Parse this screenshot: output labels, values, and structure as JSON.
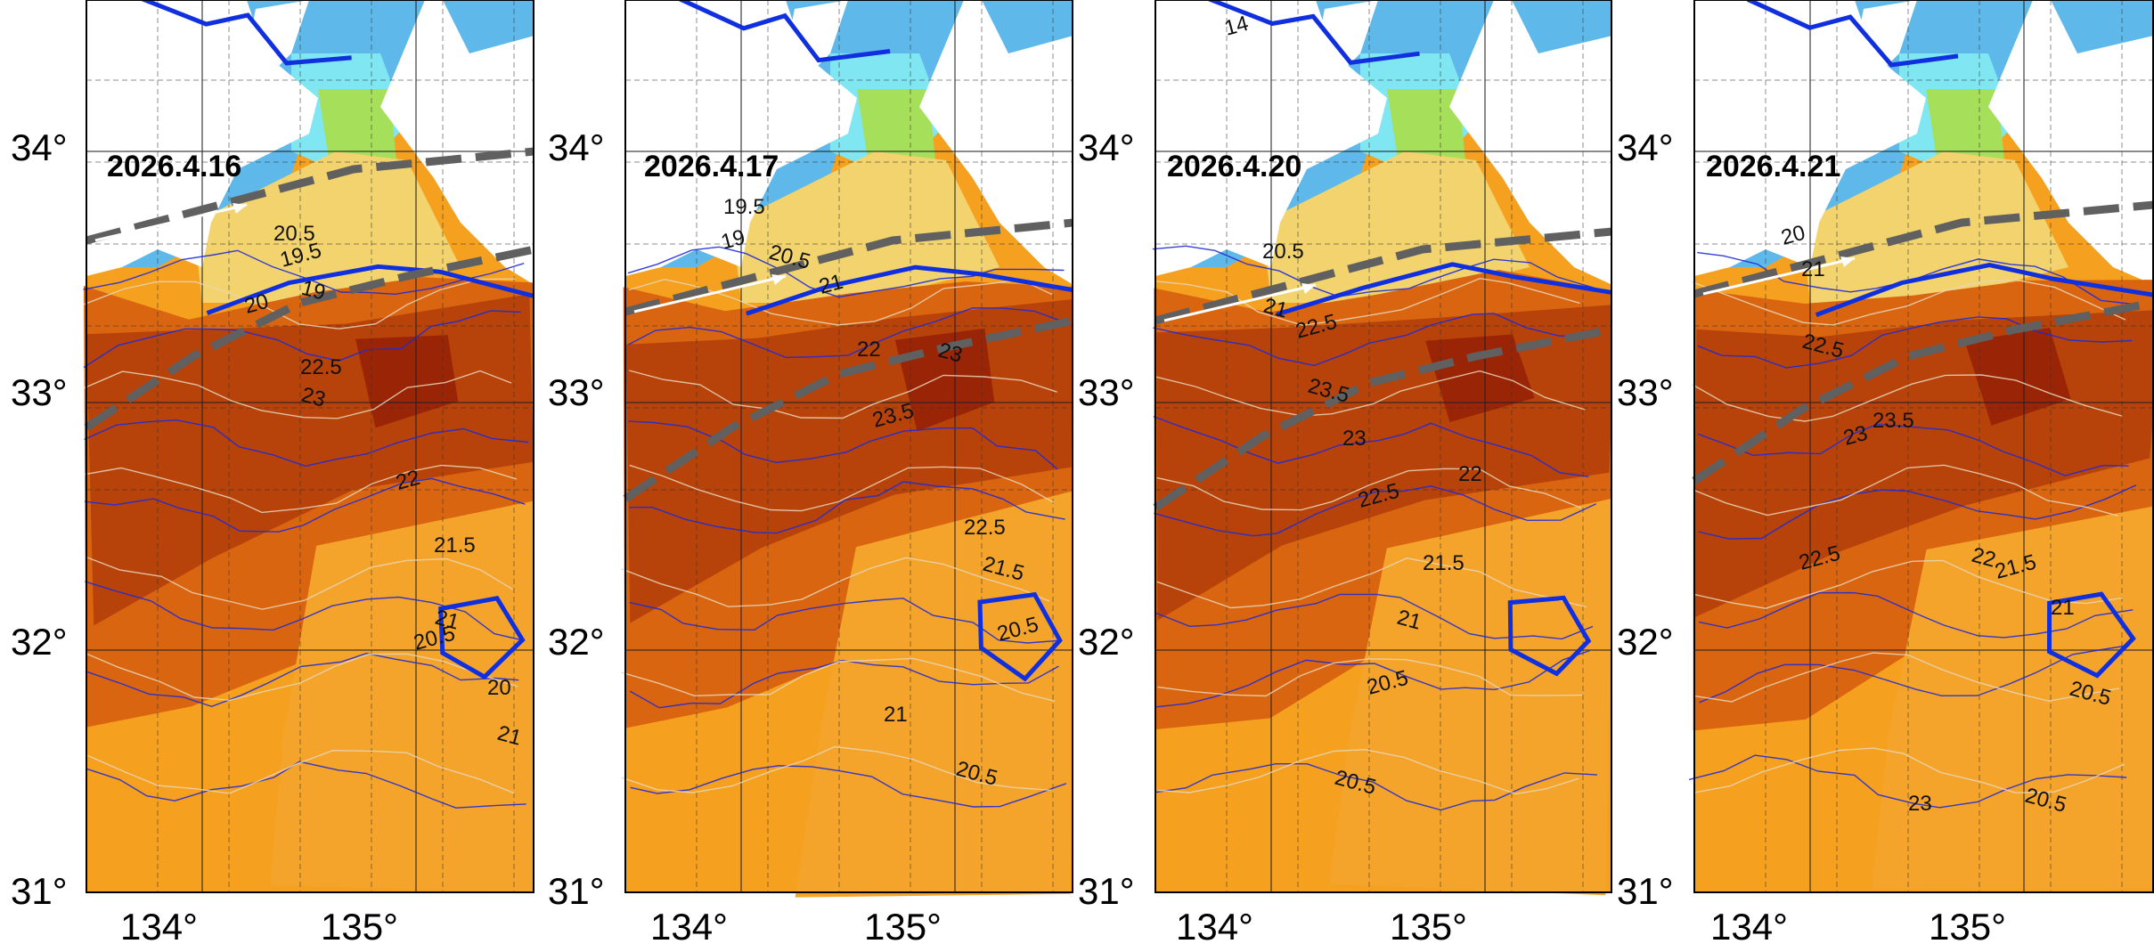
{
  "panels": [
    {
      "date": "2026.4.16",
      "contour_labels": [
        "20",
        "20.5",
        "19",
        "19.5",
        "22.5",
        "23",
        "22",
        "21.5",
        "21",
        "20.5",
        "20",
        "21"
      ],
      "lat_labels": [
        "34°",
        "33°",
        "32°",
        "31°"
      ],
      "lon_labels": [
        "134°",
        "135°"
      ]
    },
    {
      "date": "2026.4.17",
      "contour_labels": [
        "19",
        "19.5",
        "20.5",
        "21",
        "22",
        "23",
        "23.5",
        "22.5",
        "21.5",
        "20.5",
        "21",
        "20.5"
      ],
      "lat_labels": [
        "34°",
        "33°",
        "32°",
        "31°"
      ],
      "lon_labels": [
        "134°",
        "135°"
      ]
    },
    {
      "date": "2026.4.20",
      "contour_labels": [
        "14",
        "20.5",
        "21",
        "22.5",
        "23",
        "23.5",
        "22.5",
        "21.5",
        "21",
        "20.5",
        "22",
        "20.5"
      ],
      "lat_labels": [
        "34°",
        "33°",
        "32°",
        "31°"
      ],
      "lon_labels": [
        "134°",
        "135°"
      ]
    },
    {
      "date": "2026.4.21",
      "contour_labels": [
        "20",
        "21",
        "22.5",
        "23",
        "23.5",
        "22",
        "21.5",
        "21",
        "20.5",
        "22.5",
        "23",
        "20.5"
      ],
      "lat_labels": [
        "34°",
        "33°",
        "32°",
        "31°"
      ],
      "lon_labels": [
        "134°",
        "135°"
      ]
    }
  ],
  "colors": {
    "land": "#ffffff",
    "cold_sea": "#5fb8ea",
    "cyan_sea": "#7fe6f2",
    "green_sea": "#a6e05a",
    "yellow_sea": "#f2d36d",
    "orange_sea": "#f5a01e",
    "dark_orange_sea": "#d96510",
    "rust_sea": "#b7420a",
    "dark_red_sea": "#9a2406",
    "blue_contour": "#1f2bd8",
    "thick_blue_contour": "#1030e0",
    "kuroshio_axis": "#606060"
  }
}
